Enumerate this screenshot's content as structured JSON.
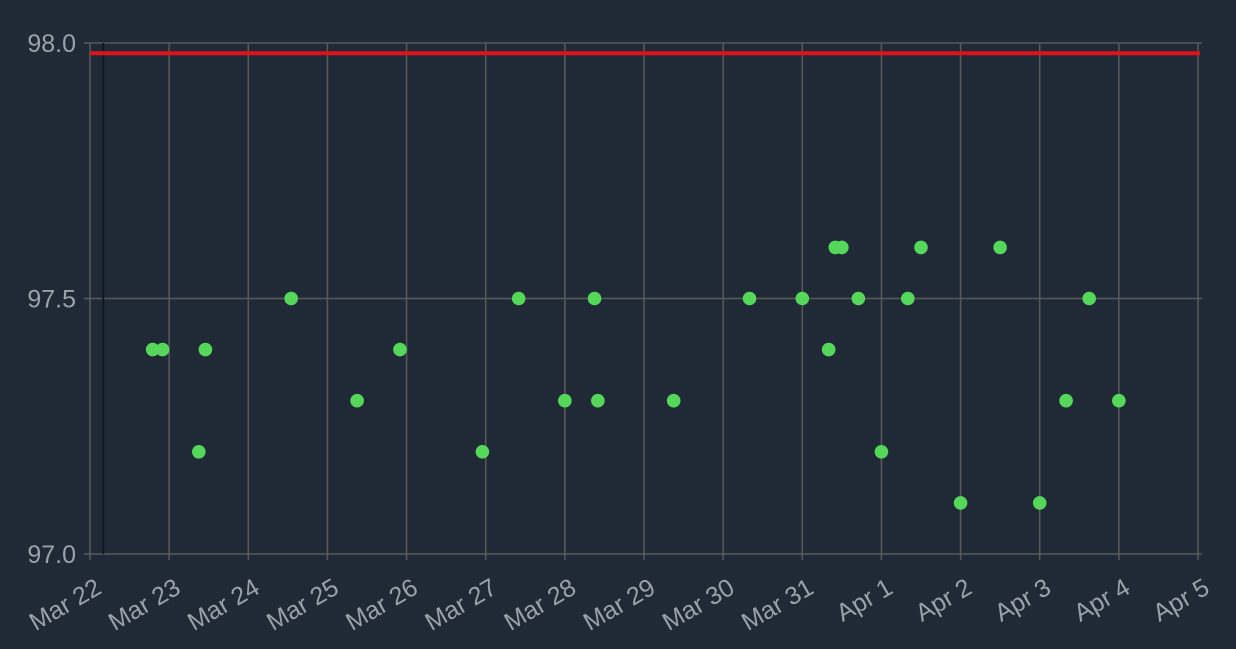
{
  "colors": {
    "background": "#1f2a36",
    "grid": "#5a5a5a",
    "tick_text": "#9aa1a8",
    "point": "#55d85a",
    "reference_line": "#e0121a",
    "marker_line": "#111820"
  },
  "chart_data": {
    "type": "scatter",
    "title": "",
    "xlabel": "",
    "ylabel": "",
    "grid": true,
    "xlim": [
      "2021-03-22",
      "2021-04-05"
    ],
    "ylim": [
      97.0,
      98.0
    ],
    "y_ticks": [
      "97.0",
      "97.5",
      "98.0"
    ],
    "x_ticks": [
      {
        "date": "2021-03-22",
        "label": "Mar 22"
      },
      {
        "date": "2021-03-23",
        "label": "Mar 23"
      },
      {
        "date": "2021-03-24",
        "label": "Mar 24"
      },
      {
        "date": "2021-03-25",
        "label": "Mar 25"
      },
      {
        "date": "2021-03-26",
        "label": "Mar 26"
      },
      {
        "date": "2021-03-27",
        "label": "Mar 27"
      },
      {
        "date": "2021-03-28",
        "label": "Mar 28"
      },
      {
        "date": "2021-03-29",
        "label": "Mar 29"
      },
      {
        "date": "2021-03-30",
        "label": "Mar 30"
      },
      {
        "date": "2021-03-31",
        "label": "Mar 31"
      },
      {
        "date": "2021-04-01",
        "label": "Apr 1"
      },
      {
        "date": "2021-04-02",
        "label": "Apr 2"
      },
      {
        "date": "2021-04-03",
        "label": "Apr 3"
      },
      {
        "date": "2021-04-04",
        "label": "Apr 4"
      },
      {
        "date": "2021-04-05",
        "label": "Apr 5"
      }
    ],
    "reference_line": {
      "y": 97.98
    },
    "vertical_marker": {
      "x": "2021-03-22T04:00"
    },
    "points": [
      {
        "x": "2021-03-22T19:00",
        "y": 97.4
      },
      {
        "x": "2021-03-22T22:00",
        "y": 97.4
      },
      {
        "x": "2021-03-23T09:00",
        "y": 97.2
      },
      {
        "x": "2021-03-23T11:00",
        "y": 97.4
      },
      {
        "x": "2021-03-24T13:00",
        "y": 97.5
      },
      {
        "x": "2021-03-25T09:00",
        "y": 97.3
      },
      {
        "x": "2021-03-25T22:00",
        "y": 97.4
      },
      {
        "x": "2021-03-26T23:00",
        "y": 97.2
      },
      {
        "x": "2021-03-27T10:00",
        "y": 97.5
      },
      {
        "x": "2021-03-28T00:00",
        "y": 97.3
      },
      {
        "x": "2021-03-28T09:00",
        "y": 97.5
      },
      {
        "x": "2021-03-28T10:00",
        "y": 97.3
      },
      {
        "x": "2021-03-29T09:00",
        "y": 97.3
      },
      {
        "x": "2021-03-30T08:00",
        "y": 97.5
      },
      {
        "x": "2021-03-31T00:00",
        "y": 97.5
      },
      {
        "x": "2021-03-31T08:00",
        "y": 97.4
      },
      {
        "x": "2021-03-31T10:00",
        "y": 97.6
      },
      {
        "x": "2021-03-31T12:00",
        "y": 97.6
      },
      {
        "x": "2021-03-31T17:00",
        "y": 97.5
      },
      {
        "x": "2021-04-01T00:00",
        "y": 97.2
      },
      {
        "x": "2021-04-01T08:00",
        "y": 97.5
      },
      {
        "x": "2021-04-01T12:00",
        "y": 97.6
      },
      {
        "x": "2021-04-02T00:00",
        "y": 97.1
      },
      {
        "x": "2021-04-02T12:00",
        "y": 97.6
      },
      {
        "x": "2021-04-03T00:00",
        "y": 97.1
      },
      {
        "x": "2021-04-03T08:00",
        "y": 97.3
      },
      {
        "x": "2021-04-03T15:00",
        "y": 97.5
      },
      {
        "x": "2021-04-04T00:00",
        "y": 97.3
      }
    ]
  }
}
